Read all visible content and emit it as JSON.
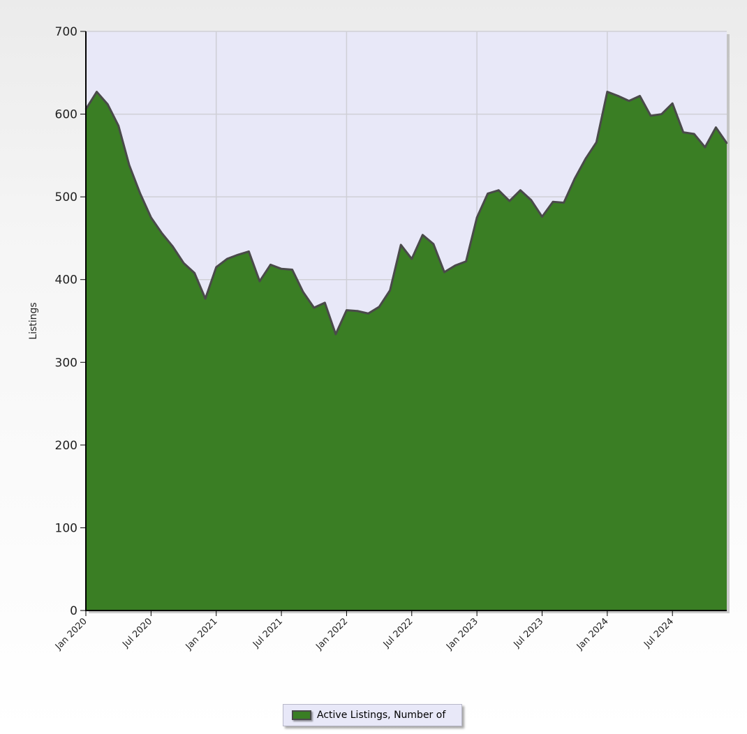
{
  "chart_data": {
    "type": "area",
    "ylabel": "Listings",
    "xlabel": "",
    "ylim": [
      0,
      700
    ],
    "yticks": [
      0,
      100,
      200,
      300,
      400,
      500,
      600,
      700
    ],
    "xlim": [
      "2020-01",
      "2024-12"
    ],
    "xtick_labels": [
      "Jan 2020",
      "Jul 2020",
      "Jan 2021",
      "Jul 2021",
      "Jan 2022",
      "Jul 2022",
      "Jan 2023",
      "Jul 2023",
      "Jan 2024",
      "Jul 2024"
    ],
    "grid": true,
    "legend_position": "bottom-center",
    "colors": {
      "fill": "#3a7e24",
      "line": "#4a4a4a",
      "plot_background": "#e8e8f8",
      "grid": "#cfcfd6"
    },
    "series": [
      {
        "name": "Active Listings, Number of",
        "x": [
          "2020-01",
          "2020-02",
          "2020-03",
          "2020-04",
          "2020-05",
          "2020-06",
          "2020-07",
          "2020-08",
          "2020-09",
          "2020-10",
          "2020-11",
          "2020-12",
          "2021-01",
          "2021-02",
          "2021-03",
          "2021-04",
          "2021-05",
          "2021-06",
          "2021-07",
          "2021-08",
          "2021-09",
          "2021-10",
          "2021-11",
          "2021-12",
          "2022-01",
          "2022-02",
          "2022-03",
          "2022-04",
          "2022-05",
          "2022-06",
          "2022-07",
          "2022-08",
          "2022-09",
          "2022-10",
          "2022-11",
          "2022-12",
          "2023-01",
          "2023-02",
          "2023-03",
          "2023-04",
          "2023-05",
          "2023-06",
          "2023-07",
          "2023-08",
          "2023-09",
          "2023-10",
          "2023-11",
          "2023-12",
          "2024-01",
          "2024-02",
          "2024-03",
          "2024-04",
          "2024-05",
          "2024-06",
          "2024-07",
          "2024-08",
          "2024-09",
          "2024-10",
          "2024-11",
          "2024-12"
        ],
        "values": [
          606,
          627,
          612,
          586,
          538,
          504,
          475,
          456,
          440,
          420,
          408,
          377,
          415,
          425,
          430,
          434,
          398,
          418,
          413,
          412,
          385,
          366,
          372,
          334,
          363,
          362,
          359,
          367,
          387,
          442,
          425,
          454,
          443,
          409,
          417,
          422,
          475,
          504,
          508,
          495,
          508,
          496,
          476,
          494,
          493,
          522,
          546,
          566,
          627,
          622,
          616,
          622,
          598,
          600,
          613,
          578,
          576,
          560,
          584,
          565
        ]
      }
    ]
  }
}
